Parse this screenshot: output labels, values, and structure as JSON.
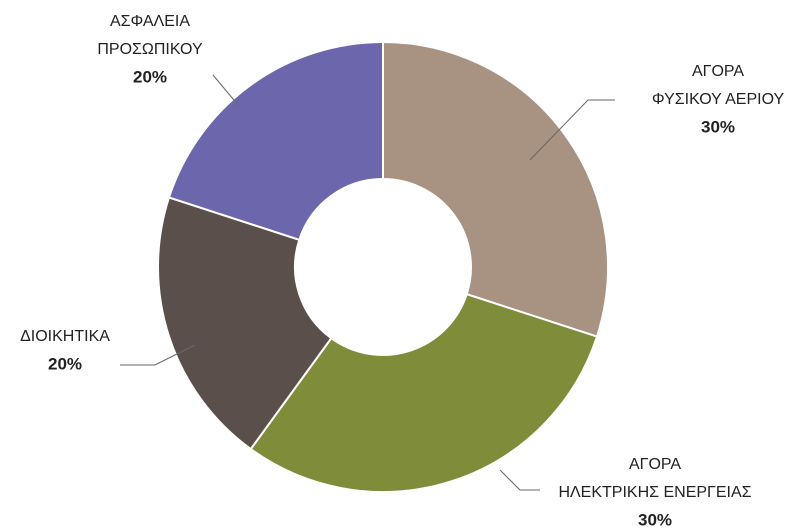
{
  "chart_data": {
    "type": "donut",
    "categories": [
      [
        "ΑΓΟΡΑ",
        "ΦΥΣΙΚΟΥ ΑΕΡΙΟΥ"
      ],
      [
        "ΑΓΟΡΑ",
        "ΗΛΕΚΤΡΙΚΗΣ ΕΝΕΡΓΕΙΑΣ"
      ],
      [
        "ΔΙΟΙΚΗΤΙΚΑ"
      ],
      [
        "ΑΣΦΑΛΕΙΑ",
        "ΠΡΟΣΩΠΙΚΟΥ"
      ]
    ],
    "values": [
      30,
      30,
      20,
      20
    ],
    "value_labels": [
      "30%",
      "30%",
      "20%",
      "20%"
    ],
    "colors": [
      "#a89282",
      "#7f8c3a",
      "#5b4f4b",
      "#6c67ad"
    ]
  }
}
